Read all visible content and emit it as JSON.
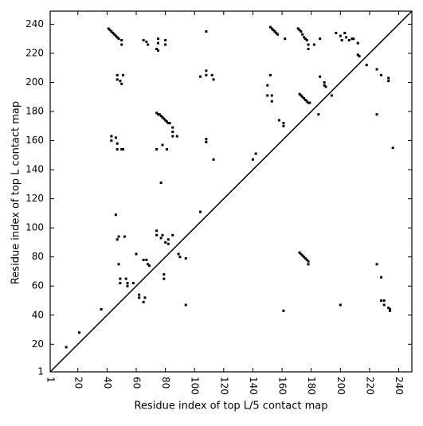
{
  "chart_data": {
    "type": "scatter",
    "x_label": "Residue index of top L/5 contact map",
    "y_label": "Residue index of top L contact map",
    "xlim": [
      1,
      249
    ],
    "ylim": [
      1,
      249
    ],
    "xticks": [
      1,
      20,
      40,
      60,
      80,
      100,
      120,
      140,
      160,
      180,
      200,
      220,
      240
    ],
    "yticks": [
      1,
      20,
      40,
      60,
      80,
      100,
      120,
      140,
      160,
      180,
      200,
      220,
      240
    ],
    "series": [
      {
        "color": "#000000",
        "x": [
          41,
          42,
          43,
          44,
          45,
          46,
          47,
          48,
          50,
          50,
          65,
          67,
          68,
          75,
          75,
          74,
          75,
          80,
          80,
          108,
          152,
          153,
          154,
          155,
          156,
          157,
          162,
          171,
          172,
          173,
          174,
          175,
          176,
          177,
          178,
          178,
          182,
          186,
          197,
          200,
          201,
          203,
          204,
          206,
          208,
          209,
          212,
          212,
          213,
          218,
          47,
          47,
          49,
          51,
          50,
          108,
          108,
          112,
          113,
          104,
          152,
          150,
          150,
          153,
          153,
          172,
          173,
          174,
          175,
          176,
          177,
          178,
          179,
          186,
          189,
          189,
          190,
          194,
          225,
          228,
          233,
          233,
          185,
          225,
          74,
          75,
          76,
          77,
          78,
          79,
          80,
          81,
          82,
          83,
          85,
          85,
          85,
          88,
          43,
          43,
          46,
          47,
          47,
          50,
          51,
          74,
          78,
          81,
          108,
          108,
          113,
          158,
          161,
          161,
          140,
          142,
          236,
          77,
          104,
          46,
          48,
          47,
          52,
          74,
          74,
          78,
          77,
          80,
          82,
          82,
          85,
          89,
          90,
          94,
          60,
          65,
          67,
          68,
          69,
          48,
          79,
          79,
          49,
          49,
          53,
          54,
          54,
          58,
          62,
          62,
          66,
          65,
          94,
          36,
          21,
          12,
          172,
          173,
          174,
          175,
          176,
          177,
          178,
          178,
          225,
          228,
          228,
          230,
          230,
          233,
          234,
          234,
          200,
          161
        ],
        "y": [
          237,
          236,
          235,
          234,
          233,
          232,
          231,
          230,
          229,
          226,
          229,
          228,
          226,
          230,
          227,
          223,
          222,
          229,
          226,
          235,
          238,
          237,
          236,
          235,
          234,
          233,
          230,
          237,
          236,
          235,
          233,
          231,
          230,
          229,
          226,
          223,
          226,
          230,
          234,
          232,
          229,
          234,
          231,
          229,
          230,
          230,
          227,
          219,
          218,
          212,
          205,
          202,
          201,
          205,
          199,
          208,
          205,
          205,
          202,
          204,
          205,
          198,
          191,
          191,
          187,
          192,
          191,
          190,
          189,
          188,
          187,
          186,
          186,
          204,
          200,
          198,
          197,
          191,
          209,
          205,
          203,
          201,
          178,
          178,
          179,
          178,
          178,
          177,
          176,
          175,
          174,
          173,
          172,
          172,
          169,
          166,
          163,
          163,
          163,
          160,
          162,
          158,
          154,
          154,
          154,
          154,
          157,
          154,
          161,
          159,
          147,
          174,
          172,
          170,
          147,
          151,
          155,
          131,
          111,
          109,
          94,
          92,
          94,
          98,
          95,
          95,
          93,
          90,
          92,
          89,
          95,
          82,
          80,
          79,
          82,
          78,
          78,
          75,
          74,
          75,
          68,
          65,
          65,
          62,
          65,
          62,
          60,
          62,
          54,
          52,
          52,
          49,
          47,
          44,
          28,
          18,
          83,
          82,
          81,
          80,
          79,
          78,
          77,
          75,
          75,
          66,
          50,
          50,
          47,
          45,
          44,
          43,
          47,
          43
        ]
      }
    ]
  }
}
